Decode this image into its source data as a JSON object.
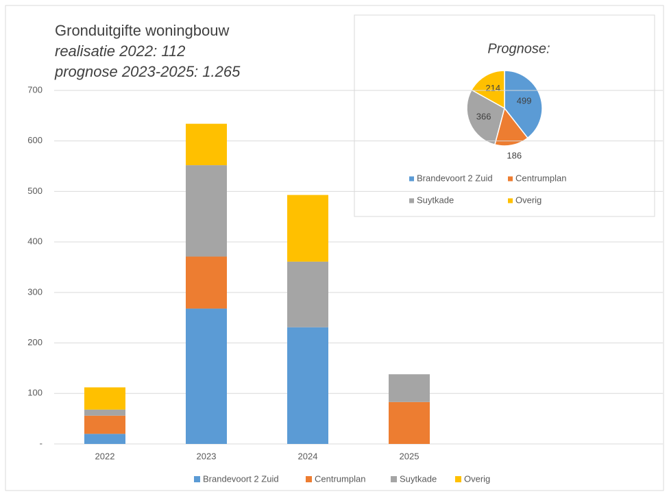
{
  "chart_data": [
    {
      "type": "bar",
      "stacked": true,
      "title": "Gronduitgifte  woningbouw",
      "subtitle": [
        "realisatie 2022: 112",
        "prognose 2023-2025: 1.265"
      ],
      "categories": [
        "2022",
        "2023",
        "2024",
        "2025"
      ],
      "series": [
        {
          "name": "Brandevoort 2 Zuid",
          "color": "#5b9bd5",
          "values": [
            20,
            268,
            231,
            null
          ]
        },
        {
          "name": "Centrumplan",
          "color": "#ed7d31",
          "values": [
            36,
            103,
            null,
            83
          ]
        },
        {
          "name": "Suytkade",
          "color": "#a5a5a5",
          "values": [
            12,
            181,
            130,
            55
          ]
        },
        {
          "name": "Overig",
          "color": "#ffc000",
          "values": [
            44,
            82,
            132,
            null
          ]
        }
      ],
      "ylim": [
        0,
        700
      ],
      "yticks": [
        {
          "value": 0,
          "label": "-"
        },
        100,
        200,
        300,
        400,
        500,
        600,
        700
      ],
      "grid": true,
      "legend": "bottom"
    },
    {
      "type": "pie",
      "title": "Prognose:",
      "categories": [
        "Brandevoort 2 Zuid",
        "Centrumplan",
        "Suytkade",
        "Overig"
      ],
      "values": [
        499,
        186,
        366,
        214
      ],
      "colors": [
        "#5b9bd5",
        "#ed7d31",
        "#a5a5a5",
        "#ffc000"
      ],
      "legend": "bottom"
    }
  ]
}
